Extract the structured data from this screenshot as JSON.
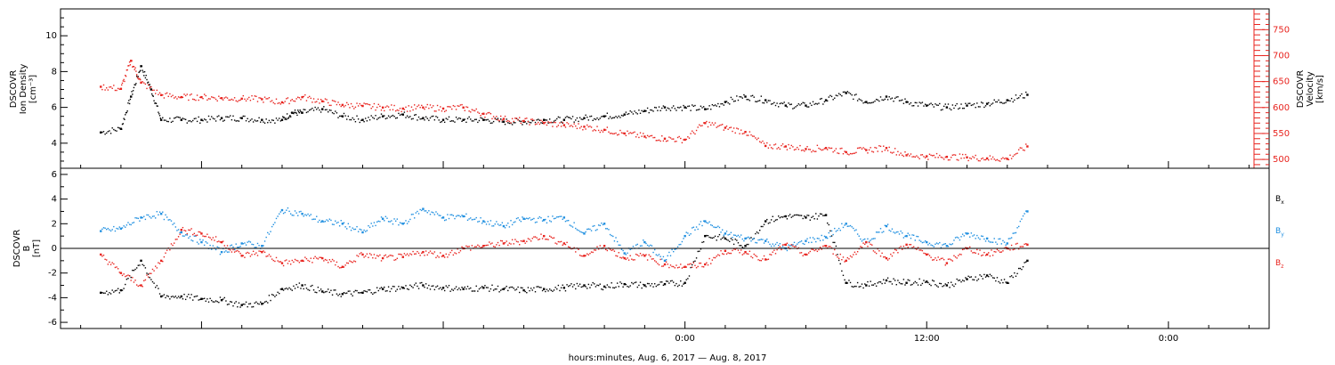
{
  "chart_data": [
    {
      "type": "scatter",
      "panel": "top",
      "ylabel_left": [
        "DSCOVR",
        "Ion Density",
        "[cm⁻³]"
      ],
      "ylabel_right": [
        "DSCOVR",
        "Velocity",
        "[km/s]"
      ],
      "yticks_left": [
        "4",
        "6",
        "8",
        "10"
      ],
      "yticks_right": [
        "500",
        "550",
        "600",
        "650",
        "700",
        "750"
      ],
      "ylim_left": [
        2.6,
        11.5
      ],
      "ylim_right": [
        483,
        790
      ],
      "colors": {
        "density": "#000000",
        "velocity": "#e8231e"
      },
      "series": [
        {
          "name": "Ion Density",
          "axis": "left",
          "color": "#000000",
          "x": [
            -29,
            -28,
            -27.5,
            -27,
            -26.5,
            -26,
            -25,
            -24,
            -23,
            -22,
            -21,
            -20,
            -19.5,
            -19,
            -18,
            -17,
            -16,
            -15,
            -14,
            -13,
            -12,
            -11,
            -10,
            -9,
            -8,
            -7,
            -6,
            -5,
            -4,
            -3,
            -2,
            -1,
            0,
            1,
            2,
            3,
            4,
            5,
            6,
            7,
            8,
            9,
            10,
            11,
            12,
            13,
            14,
            15,
            16,
            17
          ],
          "y": [
            4.6,
            4.8,
            6.6,
            8.3,
            7.0,
            5.3,
            5.3,
            5.3,
            5.4,
            5.4,
            5.3,
            5.3,
            5.7,
            5.7,
            5.9,
            5.5,
            5.3,
            5.5,
            5.6,
            5.4,
            5.3,
            5.3,
            5.3,
            5.2,
            5.2,
            5.3,
            5.3,
            5.4,
            5.5,
            5.6,
            5.8,
            6.0,
            6.0,
            5.9,
            6.3,
            6.6,
            6.4,
            6.1,
            6.1,
            6.4,
            6.8,
            6.3,
            6.6,
            6.3,
            6.1,
            6.0,
            6.1,
            6.2,
            6.4,
            6.7
          ]
        },
        {
          "name": "Velocity",
          "axis": "right",
          "color": "#e8231e",
          "x": [
            -29,
            -28,
            -27.5,
            -27,
            -26,
            -25,
            -24,
            -23,
            -22,
            -21,
            -20,
            -19,
            -18,
            -17,
            -16,
            -15,
            -14,
            -13,
            -12,
            -11,
            -10,
            -9,
            -8,
            -7,
            -6,
            -5,
            -4,
            -3,
            -2,
            -1,
            0,
            1,
            2,
            3,
            4,
            5,
            6,
            7,
            8,
            9,
            10,
            11,
            12,
            13,
            14,
            15,
            16,
            17
          ],
          "y": [
            640,
            636,
            690,
            648,
            624,
            620,
            620,
            618,
            617,
            616,
            610,
            620,
            612,
            605,
            603,
            600,
            598,
            600,
            598,
            600,
            588,
            578,
            574,
            570,
            566,
            563,
            557,
            550,
            544,
            540,
            538,
            570,
            561,
            553,
            526,
            525,
            520,
            522,
            514,
            518,
            522,
            508,
            506,
            505,
            504,
            502,
            501,
            525
          ]
        }
      ]
    },
    {
      "type": "scatter",
      "panel": "bottom",
      "ylabel_left": [
        "DSCOVR",
        "B",
        "[nT]"
      ],
      "yticks_left": [
        "-6",
        "-4",
        "-2",
        "0",
        "2",
        "4",
        "6"
      ],
      "ylim_left": [
        -6.5,
        6.5
      ],
      "zero_line": true,
      "legend_placement": "right",
      "series": [
        {
          "name": "Bx",
          "color": "#000000",
          "x": [
            -29,
            -28,
            -27,
            -26,
            -25,
            -24,
            -23,
            -22,
            -21,
            -20,
            -19,
            -18,
            -17,
            -16,
            -15,
            -14,
            -13,
            -12,
            -11,
            -10,
            -9,
            -8,
            -7,
            -6,
            -5,
            -4,
            -3,
            -2,
            -1,
            0,
            1,
            2,
            3,
            4,
            5,
            6,
            7,
            8,
            9,
            10,
            11,
            12,
            13,
            14,
            15,
            16,
            17
          ],
          "y": [
            -3.6,
            -3.4,
            -1.0,
            -3.9,
            -3.9,
            -4.1,
            -4.2,
            -4.6,
            -4.5,
            -3.3,
            -3.0,
            -3.5,
            -3.7,
            -3.6,
            -3.3,
            -3.2,
            -3.0,
            -3.2,
            -3.3,
            -3.2,
            -3.3,
            -3.4,
            -3.3,
            -3.2,
            -3.0,
            -3.1,
            -2.9,
            -3.0,
            -2.9,
            -2.8,
            1.0,
            0.8,
            0.2,
            2.2,
            2.6,
            2.5,
            2.7,
            -2.8,
            -3.0,
            -2.6,
            -2.8,
            -2.7,
            -3.0,
            -2.5,
            -2.2,
            -2.8,
            -1.0
          ]
        },
        {
          "name": "By",
          "color": "#1f8fe0",
          "x": [
            -29,
            -28,
            -27,
            -26,
            -25,
            -24,
            -23,
            -22,
            -21,
            -20,
            -19,
            -18,
            -17,
            -16,
            -15,
            -14,
            -13,
            -12,
            -11,
            -10,
            -9,
            -8,
            -7,
            -6,
            -5,
            -4,
            -3,
            -2,
            -1,
            0,
            1,
            2,
            3,
            4,
            5,
            6,
            7,
            8,
            9,
            10,
            11,
            12,
            13,
            14,
            15,
            16,
            17
          ],
          "y": [
            1.4,
            1.6,
            2.5,
            2.8,
            1.3,
            0.5,
            -0.3,
            0.4,
            0.2,
            3.1,
            2.8,
            2.2,
            2.0,
            1.3,
            2.4,
            2.0,
            3.2,
            2.5,
            2.6,
            2.2,
            1.8,
            2.4,
            2.3,
            2.5,
            1.2,
            2.0,
            -0.4,
            0.5,
            -1.0,
            1.0,
            2.2,
            1.2,
            0.8,
            0.6,
            0.0,
            0.6,
            0.9,
            2.0,
            0.5,
            1.8,
            1.0,
            0.5,
            0.2,
            1.2,
            0.8,
            0.4,
            3.0
          ]
        },
        {
          "name": "Bz",
          "color": "#e8231e",
          "x": [
            -29,
            -28,
            -27,
            -26,
            -25,
            -24,
            -23,
            -22,
            -21,
            -20,
            -19,
            -18,
            -17,
            -16,
            -15,
            -14,
            -13,
            -12,
            -11,
            -10,
            -9,
            -8,
            -7,
            -6,
            -5,
            -4,
            -3,
            -2,
            -1,
            0,
            1,
            2,
            3,
            4,
            5,
            6,
            7,
            8,
            9,
            10,
            11,
            12,
            13,
            14,
            15,
            16,
            17
          ],
          "y": [
            -0.5,
            -2.0,
            -3.0,
            -1.0,
            1.5,
            1.2,
            0.5,
            -0.6,
            -0.3,
            -1.2,
            -1.0,
            -0.8,
            -1.5,
            -0.5,
            -0.8,
            -0.7,
            -0.3,
            -0.6,
            0.0,
            0.2,
            0.4,
            0.6,
            1.0,
            0.4,
            -0.6,
            0.2,
            -0.8,
            -0.6,
            -1.3,
            -1.5,
            -1.3,
            -0.2,
            -0.3,
            -0.9,
            0.3,
            -0.5,
            0.2,
            -1.0,
            0.5,
            -0.8,
            0.3,
            -0.5,
            -1.2,
            0.0,
            -0.5,
            0.0,
            0.3
          ]
        }
      ]
    }
  ],
  "xaxis": {
    "ticklabels": [
      {
        "value": 0,
        "text": "0:00"
      },
      {
        "value": 12,
        "text": "12:00"
      },
      {
        "value": 24,
        "text": "0:00"
      }
    ],
    "xlim": [
      -31,
      29
    ],
    "minor_tick_step": 2,
    "label": "hours:minutes, Aug.  6, 2017 — Aug.  8, 2017"
  },
  "legend": {
    "bx": {
      "main": "B",
      "sub": "x"
    },
    "by": {
      "main": "B",
      "sub": "y"
    },
    "bz": {
      "main": "B",
      "sub": "z"
    }
  }
}
